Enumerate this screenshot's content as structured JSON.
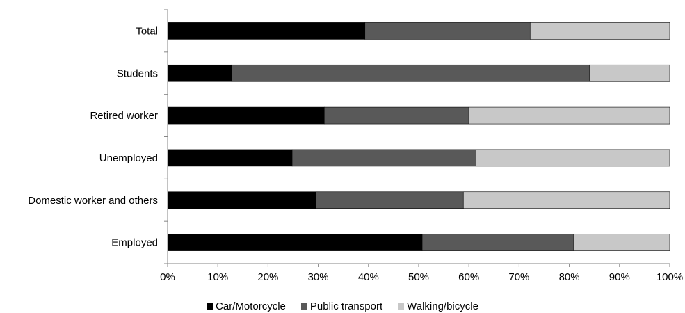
{
  "chart_data": {
    "type": "bar",
    "orientation": "horizontal",
    "stacked": true,
    "categories": [
      "Total",
      "Students",
      "Retired worker",
      "Unemployed",
      "Domestic worker and others",
      "Employed"
    ],
    "series": [
      {
        "name": "Car/Motorcycle",
        "color": "#000000",
        "values": [
          39.3,
          12.7,
          31.2,
          24.8,
          29.5,
          50.7
        ]
      },
      {
        "name": "Public transport",
        "color": "#595959",
        "values": [
          32.9,
          71.3,
          28.8,
          36.6,
          29.4,
          30.2
        ]
      },
      {
        "name": "Walking/bicycle",
        "color": "#c8c8c8",
        "values": [
          27.8,
          16.0,
          40.0,
          38.6,
          41.1,
          19.1
        ]
      }
    ],
    "xlim": [
      0,
      100
    ],
    "x_ticks": [
      "0%",
      "10%",
      "20%",
      "30%",
      "40%",
      "50%",
      "60%",
      "70%",
      "80%",
      "90%",
      "100%"
    ],
    "grid": false,
    "legend_position": "bottom",
    "title": "",
    "xlabel": "",
    "ylabel": ""
  }
}
